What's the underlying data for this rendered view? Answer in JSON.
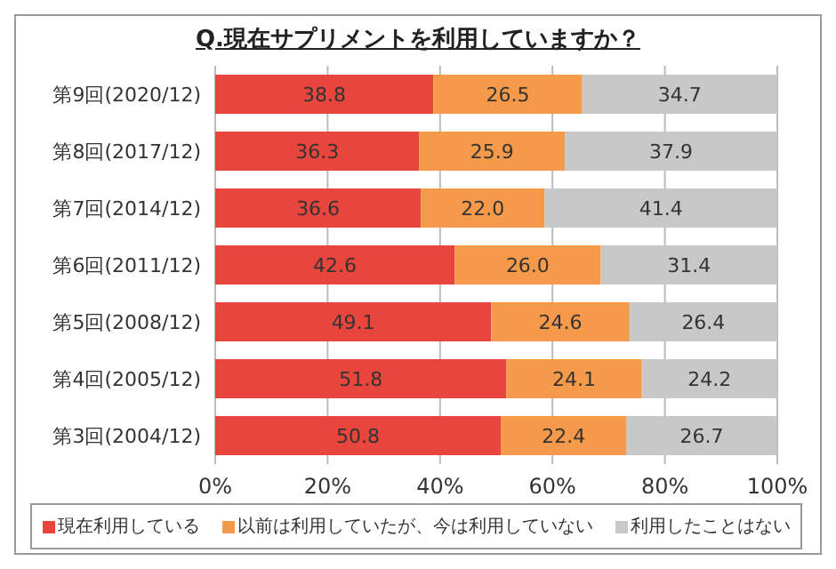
{
  "chart_data": {
    "type": "bar",
    "orientation": "horizontal",
    "stacked": true,
    "title": "Q.現在サプリメントを利用していますか？",
    "categories": [
      "第9回(2020/12)",
      "第8回(2017/12)",
      "第7回(2014/12)",
      "第6回(2011/12)",
      "第5回(2008/12)",
      "第4回(2005/12)",
      "第3回(2004/12)"
    ],
    "series": [
      {
        "name": "現在利用している",
        "color": "#e8453c",
        "values": [
          38.8,
          36.3,
          36.6,
          42.6,
          49.1,
          51.8,
          50.8
        ],
        "value_labels": [
          "38.8",
          "36.3",
          "36.6",
          "42.6",
          "49.1",
          "51.8",
          "50.8"
        ]
      },
      {
        "name": "以前は利用していたが、今は利用していない",
        "color": "#f5994a",
        "values": [
          26.5,
          25.9,
          22.0,
          26.0,
          24.6,
          24.1,
          22.4
        ],
        "value_labels": [
          "26.5",
          "25.9",
          "22.0",
          "26.0",
          "24.6",
          "24.1",
          "22.4"
        ]
      },
      {
        "name": "利用したことはない",
        "color": "#c8c8c8",
        "values": [
          34.7,
          37.9,
          41.4,
          31.4,
          26.4,
          24.2,
          26.7
        ],
        "value_labels": [
          "34.7",
          "37.9",
          "41.4",
          "31.4",
          "26.4",
          "24.2",
          "26.7"
        ]
      }
    ],
    "xlim": [
      0,
      100
    ],
    "xticks": [
      {
        "value": 0,
        "label": "0%"
      },
      {
        "value": 20,
        "label": "20%"
      },
      {
        "value": 40,
        "label": "40%"
      },
      {
        "value": 60,
        "label": "60%"
      },
      {
        "value": 80,
        "label": "80%"
      },
      {
        "value": 100,
        "label": "100%"
      }
    ],
    "grid": "x",
    "legend": "bottom"
  }
}
